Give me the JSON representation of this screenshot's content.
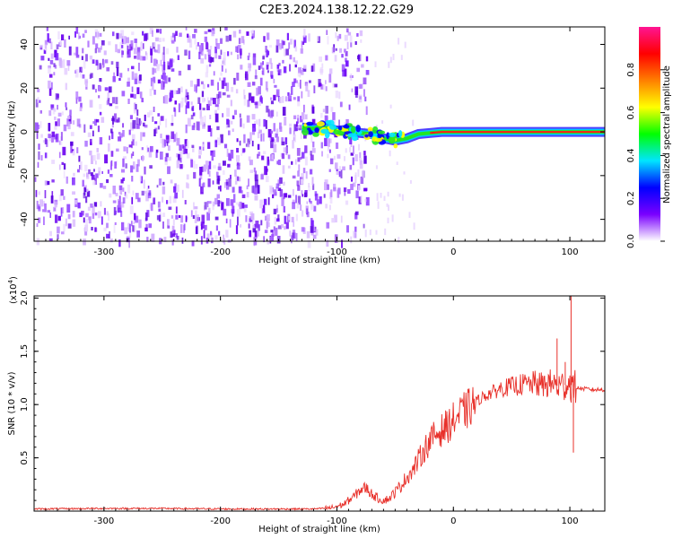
{
  "title": "C2E3.2024.138.12.22.G29",
  "chart_data": [
    {
      "type": "heatmap",
      "panel": "top",
      "xlabel": "Height of straight line (km)",
      "ylabel": "Frequency (Hz)",
      "xlim": [
        -360,
        130
      ],
      "ylim": [
        -50,
        48
      ],
      "xticks": [
        -300,
        -200,
        -100,
        0,
        100
      ],
      "xticklabels": [
        "-300",
        "-200",
        "-100",
        "0",
        "100"
      ],
      "yticks": [
        -40,
        -20,
        0,
        20,
        40
      ],
      "yticklabels": [
        "-40",
        "-20",
        "0",
        "20",
        "40"
      ],
      "grid": false,
      "colorbar": {
        "label": "Normalized spectral amplitude",
        "range": [
          0,
          1
        ],
        "ticks": [
          0,
          0.2,
          0.4,
          0.6,
          0.8
        ],
        "ticklabels": [
          "0.0",
          "0.2",
          "0.4",
          "0.6",
          "0.8"
        ],
        "colormap": [
          "#ffffff",
          "#7a00ff",
          "#0000ff",
          "#00e5ff",
          "#00ff00",
          "#ffff00",
          "#ff7f00",
          "#ff0000",
          "#ff1493"
        ]
      },
      "noise_region": {
        "x": [
          -360,
          -100
        ],
        "y": [
          -50,
          48
        ],
        "amplitude": [
          0.05,
          0.2
        ]
      },
      "signal_track": [
        {
          "x": -130,
          "y": 2.0,
          "amp": 0.3
        },
        {
          "x": -120,
          "y": 1.5,
          "amp": 0.35
        },
        {
          "x": -110,
          "y": 2.0,
          "amp": 0.4
        },
        {
          "x": -100,
          "y": 0.5,
          "amp": 0.45
        },
        {
          "x": -90,
          "y": 1.0,
          "amp": 0.45
        },
        {
          "x": -80,
          "y": -0.5,
          "amp": 0.45
        },
        {
          "x": -70,
          "y": -1.0,
          "amp": 0.45
        },
        {
          "x": -60,
          "y": -3.0,
          "amp": 0.55
        },
        {
          "x": -50,
          "y": -4.0,
          "amp": 0.6
        },
        {
          "x": -40,
          "y": -3.0,
          "amp": 0.7
        },
        {
          "x": -30,
          "y": -1.0,
          "amp": 0.75
        },
        {
          "x": -20,
          "y": -0.5,
          "amp": 0.8
        },
        {
          "x": -10,
          "y": 0.0,
          "amp": 0.85
        },
        {
          "x": 0,
          "y": 0.0,
          "amp": 0.9
        },
        {
          "x": 20,
          "y": 0.0,
          "amp": 0.95
        },
        {
          "x": 40,
          "y": 0.0,
          "amp": 0.95
        },
        {
          "x": 60,
          "y": 0.0,
          "amp": 0.95
        },
        {
          "x": 80,
          "y": 0.0,
          "amp": 0.95
        },
        {
          "x": 100,
          "y": 0.0,
          "amp": 0.95
        },
        {
          "x": 130,
          "y": 0.0,
          "amp": 0.95
        }
      ]
    },
    {
      "type": "line",
      "panel": "bottom",
      "xlabel": "Height of straight line (km)",
      "ylabel": "SNR (10 * v/v)",
      "y_multiplier": "(x10",
      "y_multiplier_exp": "4",
      "y_multiplier_close": ")",
      "xlim": [
        -360,
        130
      ],
      "ylim": [
        0,
        2.02
      ],
      "xticks": [
        -300,
        -200,
        -100,
        0,
        100
      ],
      "xticklabels": [
        "-300",
        "-200",
        "-100",
        "0",
        "100"
      ],
      "yticks": [
        0.5,
        1.0,
        1.5,
        2.0
      ],
      "yticklabels": [
        "0.5",
        "1.0",
        "1.5",
        "2.0"
      ],
      "grid": false,
      "color": "#e8302a",
      "series": [
        {
          "x": [
            -360,
            -300,
            -250,
            -200,
            -150,
            -120,
            -105,
            -95,
            -90,
            -85,
            -80,
            -75,
            -70,
            -65,
            -60,
            -55,
            -50,
            -45,
            -40,
            -35,
            -30,
            -25,
            -20,
            -15,
            -10,
            -5,
            0,
            5,
            10,
            15,
            20,
            25,
            30,
            35,
            40,
            45,
            50,
            55,
            60,
            65,
            70,
            75,
            80,
            85,
            90,
            95,
            100,
            103,
            105,
            110,
            120,
            130
          ],
          "y": [
            0.02,
            0.025,
            0.025,
            0.02,
            0.02,
            0.02,
            0.03,
            0.06,
            0.1,
            0.14,
            0.2,
            0.22,
            0.16,
            0.12,
            0.1,
            0.12,
            0.18,
            0.24,
            0.32,
            0.38,
            0.48,
            0.58,
            0.66,
            0.72,
            0.76,
            0.8,
            0.85,
            0.9,
            0.94,
            0.98,
            1.03,
            1.07,
            1.1,
            1.12,
            1.15,
            1.16,
            1.17,
            1.18,
            1.19,
            1.19,
            1.2,
            1.18,
            1.19,
            1.2,
            1.17,
            1.18,
            1.2,
            1.15,
            1.16,
            1.15,
            1.14,
            1.14
          ]
        }
      ],
      "spikes": [
        {
          "x": 89,
          "y": 1.62
        },
        {
          "x": 96,
          "y": 1.4
        },
        {
          "x": 101,
          "y": 2.02
        },
        {
          "x": 103,
          "y": 0.55
        }
      ]
    }
  ]
}
